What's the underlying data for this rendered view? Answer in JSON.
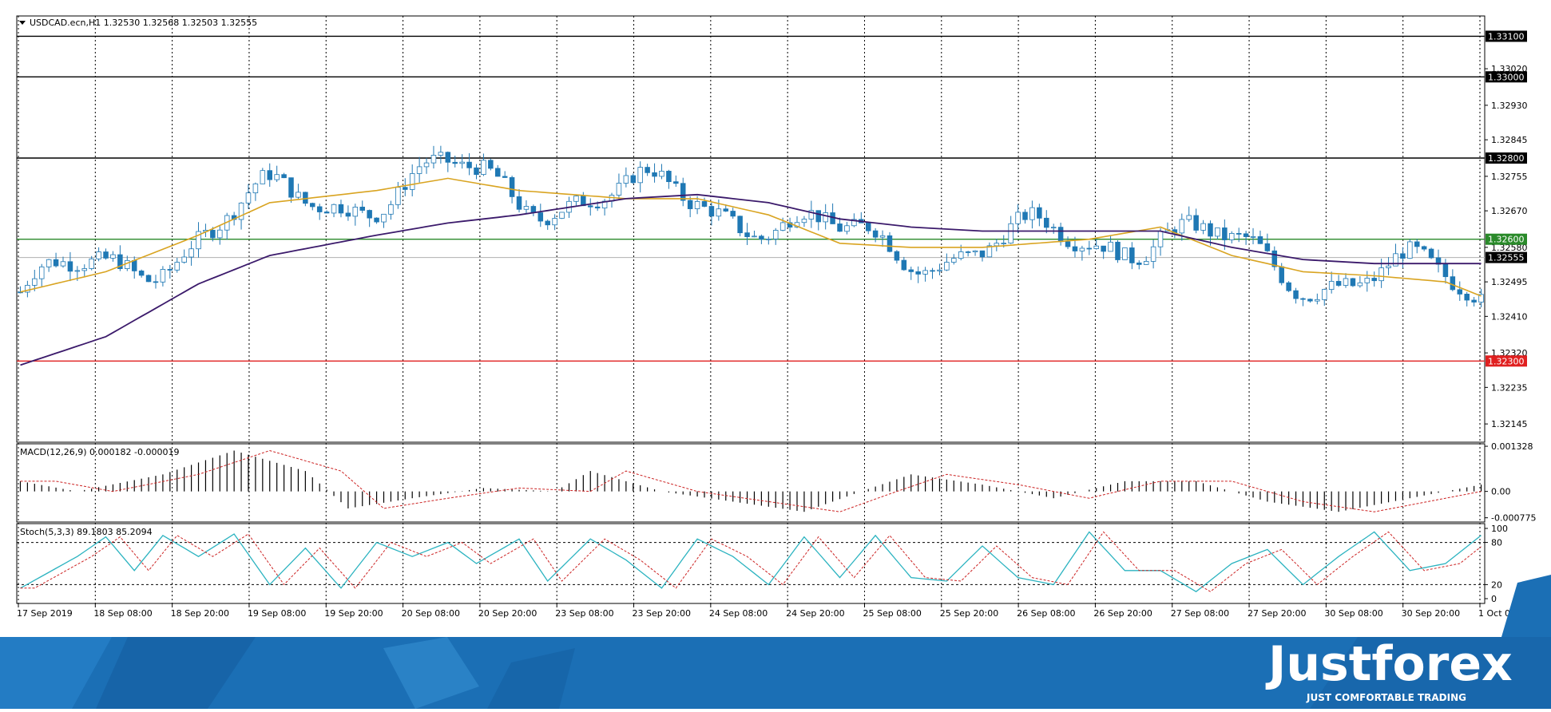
{
  "header": {
    "symbol_line": "USDCAD.ecn,H1  1.32530 1.32568 1.32503 1.32555"
  },
  "macd": {
    "label": "MACD(12,26,9) 0.000182 -0.000019",
    "ticks": [
      "0.001328",
      "0.00",
      "-0.000775"
    ]
  },
  "stoch": {
    "label": "Stoch(5,3,3) 89.1803 85.2094",
    "ticks": [
      "100",
      "80",
      "20",
      "0"
    ]
  },
  "brand": {
    "logo_text": "Justforex",
    "tagline": "JUST COMFORTABLE TRADING"
  },
  "colors": {
    "bull_candle": "#ffffff",
    "bear_candle": "#1f78b4",
    "candle_outline": "#1f78b4",
    "ma_fast": "#d9a421",
    "ma_slow": "#3b1a6b",
    "level_support": "#e02020",
    "level_green": "#2a8a2a",
    "level_black": "#000000",
    "stoch_main": "#2bb3c0",
    "stoch_signal": "#cc2222",
    "macd_signal": "#cc2222",
    "footer_blue": "#1b6fb5"
  },
  "chart_data": {
    "type": "candlestick",
    "symbol": "USDCAD.ecn",
    "timeframe": "H1",
    "ohlc_current": {
      "open": 1.3253,
      "high": 1.32568,
      "low": 1.32503,
      "close": 1.32555
    },
    "ylim": [
      1.321,
      1.3315
    ],
    "y_ticks": [
      1.3302,
      1.3293,
      1.32845,
      1.32755,
      1.3267,
      1.3258,
      1.32495,
      1.3241,
      1.3232,
      1.32235,
      1.32145
    ],
    "y_tick_labels": [
      "1.33020",
      "1.32930",
      "1.32845",
      "1.32755",
      "1.32670",
      "1.32580",
      "1.32495",
      "1.32410",
      "1.32320",
      "1.32235",
      "1.32145"
    ],
    "x_labels": [
      "17 Sep 2019",
      "18 Sep 08:00",
      "18 Sep 20:00",
      "19 Sep 08:00",
      "19 Sep 20:00",
      "20 Sep 08:00",
      "20 Sep 20:00",
      "23 Sep 08:00",
      "23 Sep 20:00",
      "24 Sep 08:00",
      "24 Sep 20:00",
      "25 Sep 08:00",
      "25 Sep 20:00",
      "26 Sep 08:00",
      "26 Sep 20:00",
      "27 Sep 08:00",
      "27 Sep 20:00",
      "30 Sep 08:00",
      "30 Sep 20:00",
      "1 Oct 08:00"
    ],
    "levels": [
      {
        "price": 1.331,
        "label": "1.33100",
        "color": "#000000"
      },
      {
        "price": 1.33,
        "label": "1.33000",
        "color": "#000000"
      },
      {
        "price": 1.328,
        "label": "1.32800",
        "color": "#000000"
      },
      {
        "price": 1.326,
        "label": "1.32600",
        "color": "#2a8a2a"
      },
      {
        "price": 1.32555,
        "label": "1.32555",
        "color": "#000000"
      },
      {
        "price": 1.323,
        "label": "1.32300",
        "color": "#e02020"
      }
    ],
    "ma_fast_anchors": [
      [
        0,
        1.3247
      ],
      [
        12,
        1.3252
      ],
      [
        25,
        1.3261
      ],
      [
        35,
        1.3269
      ],
      [
        50,
        1.3272
      ],
      [
        60,
        1.3275
      ],
      [
        70,
        1.3272
      ],
      [
        85,
        1.327
      ],
      [
        95,
        1.327
      ],
      [
        105,
        1.3266
      ],
      [
        115,
        1.3259
      ],
      [
        125,
        1.3258
      ],
      [
        135,
        1.3258
      ],
      [
        150,
        1.326
      ],
      [
        160,
        1.3263
      ],
      [
        170,
        1.3256
      ],
      [
        180,
        1.3252
      ],
      [
        190,
        1.3251
      ],
      [
        200,
        1.32495
      ],
      [
        205,
        1.3246
      ]
    ],
    "ma_slow_anchors": [
      [
        0,
        1.3229
      ],
      [
        12,
        1.3236
      ],
      [
        25,
        1.3249
      ],
      [
        35,
        1.3256
      ],
      [
        50,
        1.3261
      ],
      [
        60,
        1.3264
      ],
      [
        70,
        1.3266
      ],
      [
        85,
        1.327
      ],
      [
        95,
        1.3271
      ],
      [
        105,
        1.3269
      ],
      [
        115,
        1.3265
      ],
      [
        125,
        1.3263
      ],
      [
        135,
        1.3262
      ],
      [
        150,
        1.3262
      ],
      [
        160,
        1.3262
      ],
      [
        170,
        1.3258
      ],
      [
        180,
        1.3255
      ],
      [
        190,
        1.3254
      ],
      [
        200,
        1.3254
      ],
      [
        205,
        1.3254
      ]
    ],
    "macd_series_anchors": [
      [
        0,
        0.0003
      ],
      [
        8,
        0.0
      ],
      [
        20,
        0.0005
      ],
      [
        30,
        0.0012
      ],
      [
        40,
        0.0006
      ],
      [
        46,
        -0.0005
      ],
      [
        55,
        -0.0002
      ],
      [
        65,
        0.0001
      ],
      [
        75,
        0.0
      ],
      [
        80,
        0.0006
      ],
      [
        90,
        0.0
      ],
      [
        100,
        -0.0003
      ],
      [
        110,
        -0.0006
      ],
      [
        118,
        0.0
      ],
      [
        125,
        0.0005
      ],
      [
        135,
        0.0002
      ],
      [
        145,
        -0.0002
      ],
      [
        155,
        0.0003
      ],
      [
        165,
        0.0003
      ],
      [
        175,
        -0.0003
      ],
      [
        185,
        -0.0006
      ],
      [
        195,
        -0.0002
      ],
      [
        205,
        0.0002
      ]
    ],
    "stoch_anchors": [
      [
        0,
        15
      ],
      [
        8,
        60
      ],
      [
        12,
        88
      ],
      [
        16,
        40
      ],
      [
        20,
        90
      ],
      [
        25,
        60
      ],
      [
        30,
        92
      ],
      [
        35,
        20
      ],
      [
        40,
        72
      ],
      [
        45,
        15
      ],
      [
        50,
        80
      ],
      [
        55,
        60
      ],
      [
        60,
        80
      ],
      [
        64,
        50
      ],
      [
        70,
        85
      ],
      [
        74,
        25
      ],
      [
        80,
        85
      ],
      [
        85,
        55
      ],
      [
        90,
        15
      ],
      [
        95,
        85
      ],
      [
        100,
        60
      ],
      [
        105,
        20
      ],
      [
        110,
        88
      ],
      [
        115,
        30
      ],
      [
        120,
        90
      ],
      [
        125,
        30
      ],
      [
        130,
        25
      ],
      [
        135,
        75
      ],
      [
        140,
        30
      ],
      [
        145,
        20
      ],
      [
        150,
        95
      ],
      [
        155,
        40
      ],
      [
        160,
        40
      ],
      [
        165,
        10
      ],
      [
        170,
        50
      ],
      [
        175,
        70
      ],
      [
        180,
        20
      ],
      [
        185,
        60
      ],
      [
        190,
        95
      ],
      [
        195,
        40
      ],
      [
        200,
        50
      ],
      [
        205,
        90
      ]
    ]
  }
}
